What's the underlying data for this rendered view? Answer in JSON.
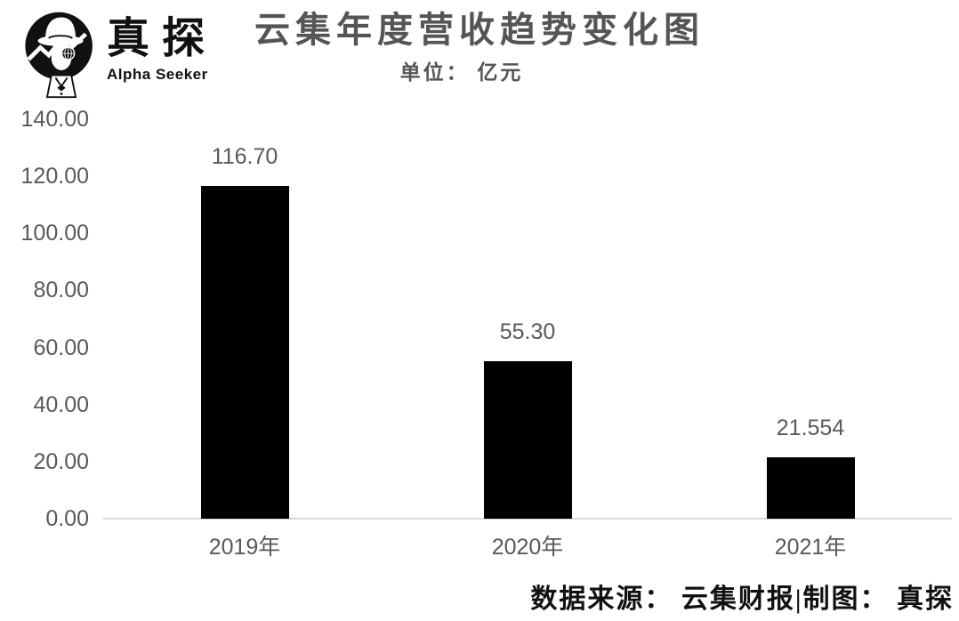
{
  "logo": {
    "brand": "真探",
    "subbrand": "Alpha Seeker"
  },
  "header": {
    "title": "云集年度营收趋势变化图",
    "subtitle": "单位： 亿元"
  },
  "chart_data": {
    "type": "bar",
    "title": "云集年度营收趋势变化图",
    "subtitle": "单位： 亿元",
    "categories": [
      "2019年",
      "2020年",
      "2021年"
    ],
    "values": [
      116.7,
      55.3,
      21.554
    ],
    "value_labels": [
      "116.70",
      "55.30",
      "21.554"
    ],
    "ylim": [
      0,
      140
    ],
    "ytick_step": 20,
    "ytick_labels": [
      "0.00",
      "20.00",
      "40.00",
      "60.00",
      "80.00",
      "100.00",
      "120.00",
      "140.00"
    ],
    "grid": false,
    "legend": "none",
    "bar_color": "#000000",
    "label_color": "#595959",
    "axis_color": "#d9d9d9"
  },
  "footer": {
    "source": "数据来源： 云集财报|制图： 真探"
  }
}
